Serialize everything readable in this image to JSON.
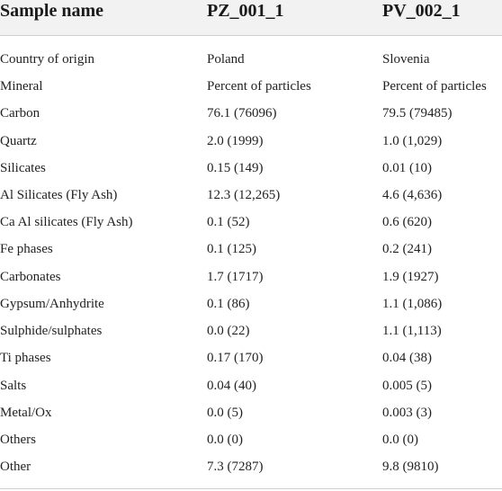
{
  "table": {
    "headers": [
      "Sample name",
      "PZ_001_1",
      "PV_002_1"
    ],
    "rows": [
      [
        "Country of origin",
        "Poland",
        "Slovenia"
      ],
      [
        "Mineral",
        "Percent of particles",
        "Percent of particles"
      ],
      [
        "Carbon",
        "76.1 (76096)",
        "79.5 (79485)"
      ],
      [
        "Quartz",
        "2.0 (1999)",
        "1.0 (1,029)"
      ],
      [
        "Silicates",
        "0.15 (149)",
        "0.01 (10)"
      ],
      [
        "Al Silicates (Fly Ash)",
        "12.3 (12,265)",
        "4.6 (4,636)"
      ],
      [
        "Ca Al silicates (Fly Ash)",
        "0.1 (52)",
        "0.6 (620)"
      ],
      [
        "Fe phases",
        "0.1 (125)",
        "0.2 (241)"
      ],
      [
        "Carbonates",
        "1.7 (1717)",
        "1.9 (1927)"
      ],
      [
        "Gypsum/Anhydrite",
        "0.1 (86)",
        "1.1 (1,086)"
      ],
      [
        "Sulphide/sulphates",
        "0.0 (22)",
        "1.1 (1,113)"
      ],
      [
        "Ti phases",
        "0.17 (170)",
        "0.04 (38)"
      ],
      [
        "Salts",
        "0.04 (40)",
        "0.005 (5)"
      ],
      [
        "Metal/Ox",
        "0.0 (5)",
        "0.003 (3)"
      ],
      [
        "Others",
        "0.0 (0)",
        "0.0 (0)"
      ],
      [
        "Other",
        "7.3 (7287)",
        "9.8 (9810)"
      ]
    ]
  }
}
